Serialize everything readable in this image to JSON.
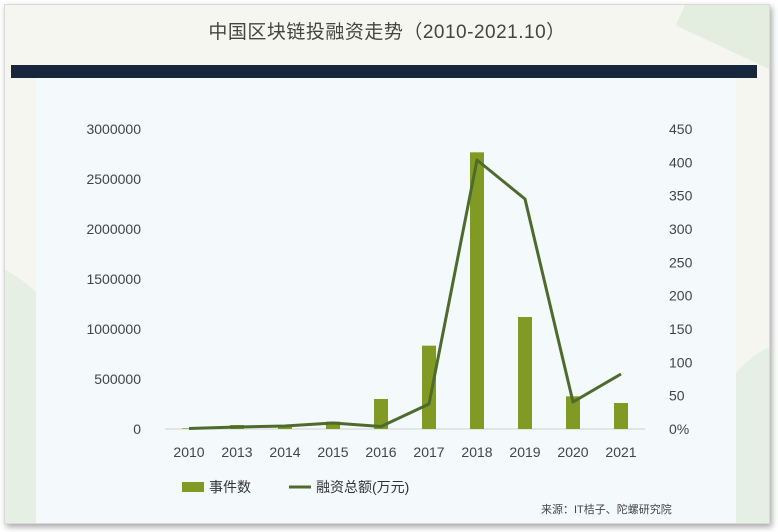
{
  "title": "中国区块链投融资走势（2010-2021.10）",
  "source": "来源：IT桔子、陀螺研究院",
  "colors": {
    "bar": "#809a24",
    "line": "#4e6a2c",
    "header_bar": "#16263b"
  },
  "chart_data": {
    "type": "bar+line",
    "categories": [
      "2010",
      "2013",
      "2014",
      "2015",
      "2016",
      "2017",
      "2018",
      "2019",
      "2020",
      "2021"
    ],
    "series": [
      {
        "name": "事件数",
        "type": "bar",
        "axis": "right",
        "values": [
          1,
          6,
          6,
          11,
          45,
          125,
          415,
          168,
          49,
          39
        ]
      },
      {
        "name": "融资总额(万元)",
        "type": "line",
        "axis": "left",
        "values": [
          5000,
          20000,
          30000,
          60000,
          25000,
          250000,
          2690000,
          2300000,
          270000,
          550000
        ]
      }
    ],
    "left_axis": {
      "min": 0,
      "max": 3000000,
      "ticks": [
        "0",
        "500000",
        "1000000",
        "1500000",
        "2000000",
        "2500000",
        "3000000"
      ]
    },
    "right_axis": {
      "min": 0,
      "max": 450,
      "ticks": [
        "0%",
        "50",
        "100",
        "150",
        "200",
        "250",
        "300",
        "350",
        "400",
        "450"
      ]
    },
    "legend_position": "bottom-left"
  }
}
